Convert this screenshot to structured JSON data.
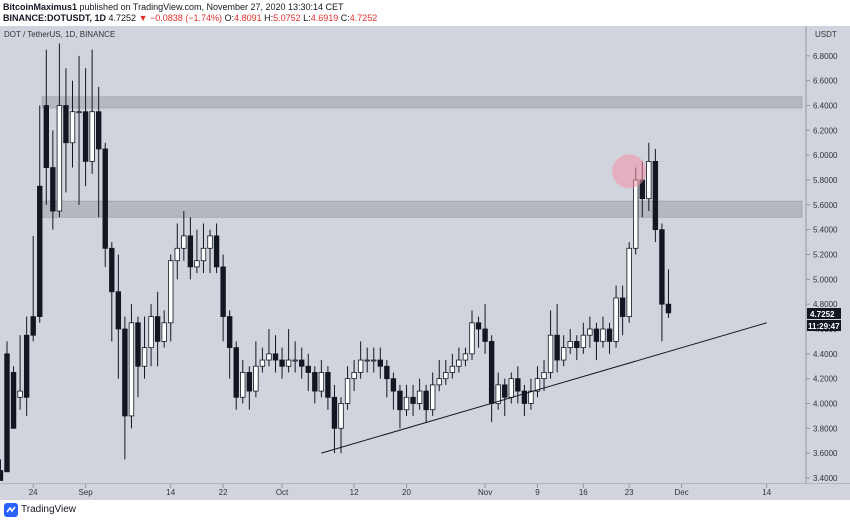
{
  "header": {
    "author": "BitcoinMaximus1",
    "published": "published on TradingView.com, November 27, 2020 13:30:14 CET",
    "exchange_symbol": "BINANCE:DOTUSDT, 1D",
    "price": "4.7252",
    "change": "▼ −0.0838 (−1.74%)",
    "o_label": "O:",
    "o_value": "4.8091",
    "h_label": "H:",
    "h_value": "5.0752",
    "l_label": "L:",
    "l_value": "4.6919",
    "c_label": "C:",
    "c_value": "4.7252"
  },
  "symbol_label": "DOT / TetherUS, 1D, BINANCE",
  "footer": {
    "brand": "TradingView"
  },
  "colors": {
    "bg": "#d1d4dc",
    "up": "#ffffff",
    "down": "#131722",
    "zone": "#b2b5be",
    "circle": "#f48fa8",
    "axis_badge": "#131722"
  },
  "chart_data": {
    "type": "candlestick",
    "y_axis": {
      "unit": "USDT",
      "min": 3.4,
      "max": 7.0,
      "ticks": [
        "3.4000",
        "3.6000",
        "3.8000",
        "4.0000",
        "4.2000",
        "4.4000",
        "4.6000",
        "4.8000",
        "5.0000",
        "5.2000",
        "5.4000",
        "5.6000",
        "5.8000",
        "6.0000",
        "6.2000",
        "6.4000",
        "6.6000",
        "6.8000"
      ]
    },
    "x_axis": {
      "start_date": "2020-08-20",
      "end_date": "2020-12-20",
      "ticks": [
        {
          "label": "24",
          "date": "2020-08-24"
        },
        {
          "label": "Sep",
          "date": "2020-09-01"
        },
        {
          "label": "14",
          "date": "2020-09-14"
        },
        {
          "label": "22",
          "date": "2020-09-22"
        },
        {
          "label": "Oct",
          "date": "2020-10-01"
        },
        {
          "label": "12",
          "date": "2020-10-12"
        },
        {
          "label": "20",
          "date": "2020-10-20"
        },
        {
          "label": "Nov",
          "date": "2020-11-01"
        },
        {
          "label": "9",
          "date": "2020-11-09"
        },
        {
          "label": "16",
          "date": "2020-11-16"
        },
        {
          "label": "23",
          "date": "2020-11-23"
        },
        {
          "label": "Dec",
          "date": "2020-12-01"
        },
        {
          "label": "14",
          "date": "2020-12-14"
        }
      ]
    },
    "first_candle_date": "2020-08-19",
    "candles": [
      [
        3.46,
        3.38,
        3.55,
        3.4
      ],
      [
        4.4,
        3.45,
        4.5,
        4.25
      ],
      [
        4.25,
        3.8,
        4.3,
        4.05
      ],
      [
        4.05,
        4.1,
        4.55,
        3.95
      ],
      [
        4.55,
        4.05,
        4.7,
        3.9
      ],
      [
        4.7,
        4.55,
        5.35,
        4.5
      ],
      [
        5.75,
        4.7,
        6.4,
        4.65
      ],
      [
        6.4,
        5.9,
        6.85,
        5.6
      ],
      [
        5.9,
        5.55,
        6.2,
        5.4
      ],
      [
        5.55,
        6.4,
        6.9,
        5.5
      ],
      [
        6.4,
        6.1,
        6.7,
        5.7
      ],
      [
        6.1,
        6.35,
        6.6,
        5.9
      ],
      [
        6.35,
        6.35,
        6.8,
        5.6
      ],
      [
        6.35,
        5.95,
        6.7,
        5.75
      ],
      [
        5.95,
        6.35,
        6.85,
        5.85
      ],
      [
        6.35,
        6.05,
        6.55,
        5.5
      ],
      [
        6.05,
        5.25,
        6.1,
        5.1
      ],
      [
        5.25,
        4.9,
        5.3,
        4.5
      ],
      [
        4.9,
        4.6,
        5.2,
        4.2
      ],
      [
        4.6,
        3.9,
        4.7,
        3.55
      ],
      [
        3.9,
        4.65,
        4.8,
        3.8
      ],
      [
        4.65,
        4.3,
        4.7,
        4.05
      ],
      [
        4.3,
        4.45,
        4.7,
        4.2
      ],
      [
        4.45,
        4.7,
        4.8,
        4.3
      ],
      [
        4.7,
        4.5,
        4.9,
        4.3
      ],
      [
        4.5,
        4.65,
        4.75,
        4.45
      ],
      [
        4.65,
        5.15,
        5.2,
        4.5
      ],
      [
        5.15,
        5.25,
        5.45,
        5.0
      ],
      [
        5.25,
        5.35,
        5.55,
        5.15
      ],
      [
        5.35,
        5.1,
        5.5,
        5.0
      ],
      [
        5.1,
        5.15,
        5.4,
        5.05
      ],
      [
        5.15,
        5.25,
        5.45,
        5.05
      ],
      [
        5.25,
        5.35,
        5.4,
        5.05
      ],
      [
        5.35,
        5.1,
        5.45,
        5.05
      ],
      [
        5.1,
        4.7,
        5.2,
        4.5
      ],
      [
        4.7,
        4.45,
        4.75,
        4.2
      ],
      [
        4.45,
        4.05,
        4.5,
        3.95
      ],
      [
        4.05,
        4.25,
        4.35,
        4.0
      ],
      [
        4.25,
        4.1,
        4.3,
        3.95
      ],
      [
        4.1,
        4.3,
        4.5,
        4.05
      ],
      [
        4.3,
        4.35,
        4.45,
        4.25
      ],
      [
        4.35,
        4.4,
        4.6,
        4.3
      ],
      [
        4.4,
        4.35,
        4.55,
        4.25
      ],
      [
        4.35,
        4.3,
        4.45,
        4.2
      ],
      [
        4.3,
        4.35,
        4.6,
        4.25
      ],
      [
        4.35,
        4.35,
        4.5,
        4.25
      ],
      [
        4.35,
        4.3,
        4.45,
        4.2
      ],
      [
        4.3,
        4.25,
        4.4,
        4.1
      ],
      [
        4.25,
        4.1,
        4.3,
        4.0
      ],
      [
        4.1,
        4.25,
        4.35,
        4.05
      ],
      [
        4.25,
        4.05,
        4.3,
        3.95
      ],
      [
        4.05,
        3.8,
        4.15,
        3.6
      ],
      [
        3.8,
        4.0,
        4.05,
        3.6
      ],
      [
        4.0,
        4.2,
        4.3,
        3.95
      ],
      [
        4.2,
        4.25,
        4.35,
        4.1
      ],
      [
        4.25,
        4.35,
        4.5,
        4.2
      ],
      [
        4.35,
        4.35,
        4.45,
        4.25
      ],
      [
        4.35,
        4.35,
        4.45,
        4.25
      ],
      [
        4.35,
        4.3,
        4.45,
        4.2
      ],
      [
        4.3,
        4.2,
        4.35,
        4.05
      ],
      [
        4.2,
        4.1,
        4.25,
        3.95
      ],
      [
        4.1,
        3.95,
        4.15,
        3.8
      ],
      [
        3.95,
        4.05,
        4.15,
        3.9
      ],
      [
        4.05,
        4.0,
        4.15,
        3.9
      ],
      [
        4.0,
        4.1,
        4.2,
        3.95
      ],
      [
        4.1,
        3.95,
        4.15,
        3.85
      ],
      [
        3.95,
        4.15,
        4.25,
        3.9
      ],
      [
        4.15,
        4.2,
        4.35,
        4.1
      ],
      [
        4.2,
        4.25,
        4.35,
        4.15
      ],
      [
        4.25,
        4.3,
        4.4,
        4.2
      ],
      [
        4.3,
        4.35,
        4.45,
        4.25
      ],
      [
        4.35,
        4.4,
        4.45,
        4.3
      ],
      [
        4.4,
        4.65,
        4.75,
        4.35
      ],
      [
        4.65,
        4.6,
        4.7,
        4.45
      ],
      [
        4.6,
        4.5,
        4.8,
        4.4
      ],
      [
        4.5,
        4.0,
        4.55,
        3.85
      ],
      [
        4.0,
        4.15,
        4.25,
        3.95
      ],
      [
        4.15,
        4.05,
        4.2,
        3.9
      ],
      [
        4.05,
        4.2,
        4.25,
        4.0
      ],
      [
        4.2,
        4.1,
        4.3,
        4.0
      ],
      [
        4.1,
        4.0,
        4.15,
        3.9
      ],
      [
        4.0,
        4.1,
        4.2,
        3.95
      ],
      [
        4.1,
        4.2,
        4.3,
        4.05
      ],
      [
        4.2,
        4.25,
        4.35,
        4.1
      ],
      [
        4.25,
        4.55,
        4.75,
        4.2
      ],
      [
        4.55,
        4.35,
        4.8,
        4.25
      ],
      [
        4.35,
        4.45,
        4.55,
        4.3
      ],
      [
        4.45,
        4.5,
        4.6,
        4.4
      ],
      [
        4.5,
        4.45,
        4.55,
        4.35
      ],
      [
        4.45,
        4.55,
        4.65,
        4.4
      ],
      [
        4.55,
        4.6,
        4.7,
        4.45
      ],
      [
        4.6,
        4.5,
        4.65,
        4.35
      ],
      [
        4.5,
        4.6,
        4.7,
        4.45
      ],
      [
        4.6,
        4.5,
        4.65,
        4.4
      ],
      [
        4.5,
        4.85,
        4.95,
        4.45
      ],
      [
        4.85,
        4.7,
        4.95,
        4.55
      ],
      [
        4.7,
        5.25,
        5.3,
        4.65
      ],
      [
        5.25,
        5.8,
        5.9,
        5.2
      ],
      [
        5.8,
        5.65,
        5.95,
        5.5
      ],
      [
        5.65,
        5.95,
        6.1,
        5.55
      ],
      [
        5.95,
        5.4,
        6.05,
        5.3
      ],
      [
        5.4,
        4.8,
        5.45,
        4.5
      ],
      [
        4.8,
        4.73,
        5.08,
        4.69
      ]
    ],
    "zones": [
      [
        6.38,
        6.47
      ],
      [
        5.5,
        5.63
      ]
    ],
    "trendline": [
      [
        "2020-10-07",
        3.6
      ],
      [
        "2020-12-14",
        4.65
      ]
    ],
    "highlight_circle": {
      "date": "2020-11-23",
      "value": 5.87
    },
    "price_badge": "4.7252",
    "time_badge": "11:29:47"
  }
}
